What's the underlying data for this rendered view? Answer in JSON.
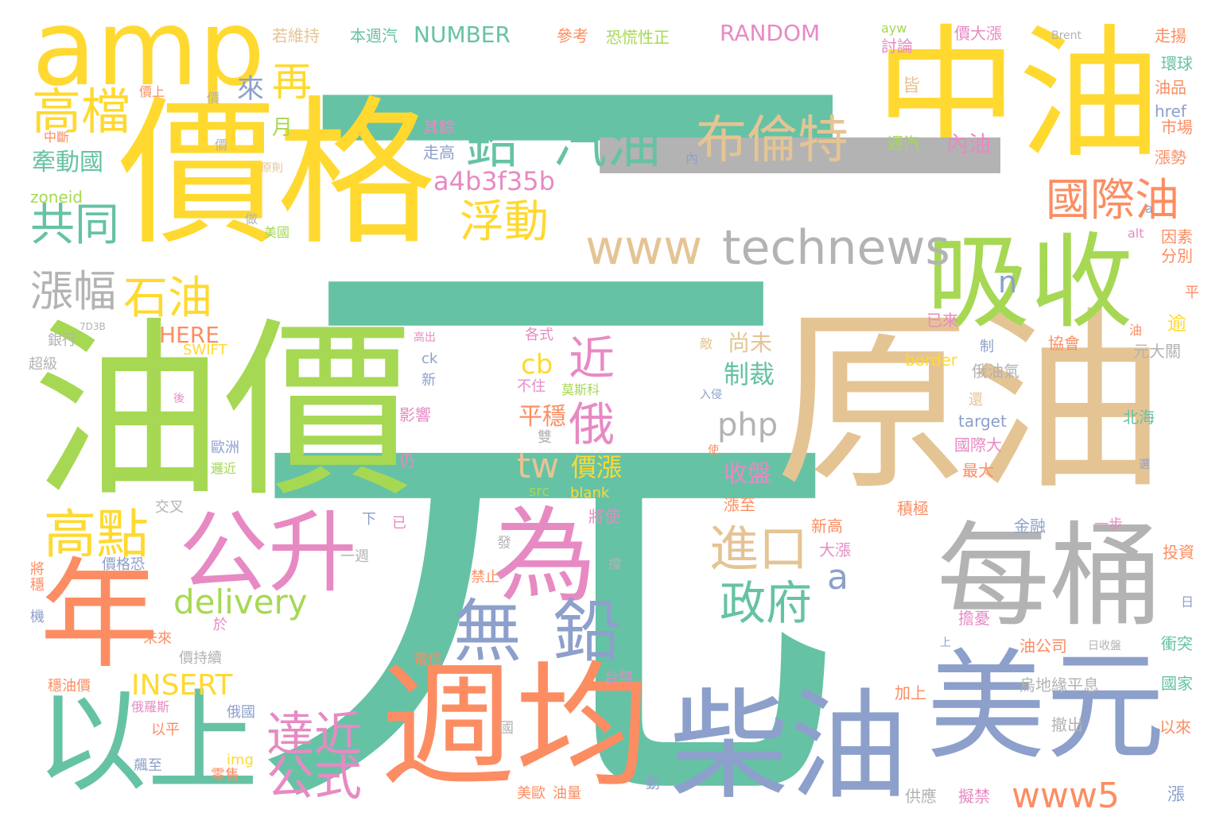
{
  "palette": {
    "teal": "#66c2a5",
    "orange": "#fc8d62",
    "blue": "#8da0cb",
    "pink": "#e78ac3",
    "green": "#a6d854",
    "yellow": "#ffd92f",
    "tan": "#e5c494",
    "gray": "#b3b3b3",
    "background": "#ffffff"
  },
  "words": [
    {
      "text": "元",
      "color": "#66c2a5"
    },
    {
      "text": "一",
      "color": "#66c2a5"
    },
    {
      "text": "價格",
      "color": "#ffd92f"
    },
    {
      "text": "原油",
      "color": "#e5c494"
    },
    {
      "text": "油價",
      "color": "#a6d854"
    },
    {
      "text": "中油",
      "color": "#ffd92f"
    },
    {
      "text": "週均",
      "color": "#fc8d62"
    },
    {
      "text": "美元",
      "color": "#8da0cb"
    },
    {
      "text": "柴油",
      "color": "#8da0cb"
    },
    {
      "text": "每桶",
      "color": "#b3b3b3"
    },
    {
      "text": "吸收",
      "color": "#a6d854"
    },
    {
      "text": "年",
      "color": "#fc8d62"
    },
    {
      "text": "以上",
      "color": "#66c2a5"
    },
    {
      "text": "amp",
      "color": "#ffd92f"
    },
    {
      "text": "為",
      "color": "#e78ac3"
    },
    {
      "text": "公升",
      "color": "#e78ac3"
    },
    {
      "text": "一",
      "color": "#b3b3b3"
    },
    {
      "text": "technews",
      "color": "#b3b3b3"
    },
    {
      "text": "鉛",
      "color": "#66c2a5"
    },
    {
      "text": "汽油",
      "color": "#66c2a5"
    },
    {
      "text": "布倫特",
      "color": "#e5c494"
    },
    {
      "text": "國際油",
      "color": "#fc8d62"
    },
    {
      "text": "無",
      "color": "#8da0cb"
    },
    {
      "text": "鉛",
      "color": "#8da0cb"
    },
    {
      "text": "高檔",
      "color": "#ffd92f"
    },
    {
      "text": "高點",
      "color": "#ffd92f"
    },
    {
      "text": "進口",
      "color": "#e5c494"
    },
    {
      "text": "政府",
      "color": "#66c2a5"
    },
    {
      "text": "達近",
      "color": "#e78ac3"
    },
    {
      "text": "公式",
      "color": "#e78ac3"
    },
    {
      "text": "www",
      "color": "#e5c494"
    },
    {
      "text": "浮動",
      "color": "#ffd92f"
    },
    {
      "text": "共同",
      "color": "#66c2a5"
    },
    {
      "text": "石油",
      "color": "#ffd92f"
    },
    {
      "text": "漲幅",
      "color": "#b3b3b3"
    },
    {
      "text": "再",
      "color": "#ffd92f"
    },
    {
      "text": "近",
      "color": "#e78ac3"
    },
    {
      "text": "俄",
      "color": "#e78ac3"
    },
    {
      "text": "tw",
      "color": "#e5c494"
    },
    {
      "text": "delivery",
      "color": "#a6d854"
    },
    {
      "text": "www5",
      "color": "#fc8d62"
    },
    {
      "text": "a4b3f35b",
      "color": "#e78ac3"
    },
    {
      "text": "php",
      "color": "#b3b3b3"
    },
    {
      "text": "a",
      "color": "#8da0cb"
    },
    {
      "text": "INSERT",
      "color": "#ffd92f"
    },
    {
      "text": "NUMBER",
      "color": "#66c2a5"
    },
    {
      "text": "RANDOM",
      "color": "#e78ac3"
    },
    {
      "text": "HERE",
      "color": "#fc8d62"
    },
    {
      "text": "SWIFT",
      "color": "#ffd92f"
    },
    {
      "text": "牽動國",
      "color": "#66c2a5"
    },
    {
      "text": "來",
      "color": "#8da0cb"
    },
    {
      "text": "月",
      "color": "#a6d854"
    },
    {
      "text": "cb",
      "color": "#ffd92f"
    },
    {
      "text": "制裁",
      "color": "#66c2a5"
    },
    {
      "text": "尚未",
      "color": "#e5c494"
    },
    {
      "text": "收盤",
      "color": "#e78ac3"
    },
    {
      "text": "價漲",
      "color": "#ffd92f"
    },
    {
      "text": "平穩",
      "color": "#fc8d62"
    },
    {
      "text": "內油",
      "color": "#e78ac3"
    },
    {
      "text": "n",
      "color": "#8da0cb"
    },
    {
      "text": "逾",
      "color": "#ffd92f"
    },
    {
      "text": "若維持",
      "color": "#e5c494"
    },
    {
      "text": "本週汽",
      "color": "#66c2a5"
    },
    {
      "text": "參考",
      "color": "#fc8d62"
    },
    {
      "text": "恐慌性正",
      "color": "#a6d854"
    },
    {
      "text": "價大漲",
      "color": "#e78ac3"
    },
    {
      "text": "走揚",
      "color": "#fc8d62"
    },
    {
      "text": "環球",
      "color": "#66c2a5"
    },
    {
      "text": "油品",
      "color": "#fc8d62"
    },
    {
      "text": "href",
      "color": "#8da0cb"
    },
    {
      "text": "市場",
      "color": "#fc8d62"
    },
    {
      "text": "漲勢",
      "color": "#fc8d62"
    },
    {
      "text": "因素",
      "color": "#fc8d62"
    },
    {
      "text": "分別",
      "color": "#fc8d62"
    },
    {
      "text": "zoneid",
      "color": "#a6d854"
    },
    {
      "text": "其餘",
      "color": "#e78ac3"
    },
    {
      "text": "走高",
      "color": "#8da0cb"
    },
    {
      "text": "週汽",
      "color": "#a6d854"
    },
    {
      "text": "皆",
      "color": "#e5c494"
    },
    {
      "text": "討論",
      "color": "#e78ac3"
    },
    {
      "text": "ayw",
      "color": "#a6d854"
    },
    {
      "text": "Brent",
      "color": "#b3b3b3"
    },
    {
      "text": "已來",
      "color": "#e78ac3"
    },
    {
      "text": "border",
      "color": "#ffd92f"
    },
    {
      "text": "俄油氣",
      "color": "#b3b3b3"
    },
    {
      "text": "target",
      "color": "#8da0cb"
    },
    {
      "text": "國際大",
      "color": "#e78ac3"
    },
    {
      "text": "最大",
      "color": "#fc8d62"
    },
    {
      "text": "積極",
      "color": "#fc8d62"
    },
    {
      "text": "協會",
      "color": "#fc8d62"
    },
    {
      "text": "元大關",
      "color": "#b3b3b3"
    },
    {
      "text": "北海",
      "color": "#66c2a5"
    },
    {
      "text": "金融",
      "color": "#8da0cb"
    },
    {
      "text": "一步",
      "color": "#e78ac3"
    },
    {
      "text": "投資",
      "color": "#fc8d62"
    },
    {
      "text": "衝突",
      "color": "#66c2a5"
    },
    {
      "text": "國家",
      "color": "#66c2a5"
    },
    {
      "text": "以來",
      "color": "#fc8d62"
    },
    {
      "text": "撤出",
      "color": "#b3b3b3"
    },
    {
      "text": "烏地緣平息",
      "color": "#b3b3b3"
    },
    {
      "text": "加上",
      "color": "#fc8d62"
    },
    {
      "text": "擔憂",
      "color": "#e78ac3"
    },
    {
      "text": "油公司",
      "color": "#fc8d62"
    },
    {
      "text": "供應",
      "color": "#b3b3b3"
    },
    {
      "text": "擬禁",
      "color": "#e78ac3"
    },
    {
      "text": "新高",
      "color": "#fc8d62"
    },
    {
      "text": "大漲",
      "color": "#e78ac3"
    },
    {
      "text": "漲至",
      "color": "#fc8d62"
    },
    {
      "text": "影響",
      "color": "#e78ac3"
    },
    {
      "text": "雙",
      "color": "#b3b3b3"
    },
    {
      "text": "將使",
      "color": "#e78ac3"
    },
    {
      "text": "src",
      "color": "#a6d854"
    },
    {
      "text": "blank",
      "color": "#ffd92f"
    },
    {
      "text": "各式",
      "color": "#e78ac3"
    },
    {
      "text": "莫斯科",
      "color": "#a6d854"
    },
    {
      "text": "不住",
      "color": "#e78ac3"
    },
    {
      "text": "仍",
      "color": "#e78ac3"
    },
    {
      "text": "ck",
      "color": "#8da0cb"
    },
    {
      "text": "新",
      "color": "#8da0cb"
    },
    {
      "text": "高出",
      "color": "#e78ac3"
    },
    {
      "text": "銀行",
      "color": "#b3b3b3"
    },
    {
      "text": "超級",
      "color": "#b3b3b3"
    },
    {
      "text": "歐洲",
      "color": "#8da0cb"
    },
    {
      "text": "邏近",
      "color": "#a6d854"
    },
    {
      "text": "交叉",
      "color": "#b3b3b3"
    },
    {
      "text": "價格恐",
      "color": "#8da0cb"
    },
    {
      "text": "價持續",
      "color": "#b3b3b3"
    },
    {
      "text": "未來",
      "color": "#fc8d62"
    },
    {
      "text": "於",
      "color": "#e78ac3"
    },
    {
      "text": "穩油價",
      "color": "#fc8d62"
    },
    {
      "text": "俄羅斯",
      "color": "#e78ac3"
    },
    {
      "text": "以平",
      "color": "#fc8d62"
    },
    {
      "text": "俄國",
      "color": "#8da0cb"
    },
    {
      "text": "飆至",
      "color": "#8da0cb"
    },
    {
      "text": "零售",
      "color": "#fc8d62"
    },
    {
      "text": "img",
      "color": "#ffd92f"
    },
    {
      "text": "美歐",
      "color": "#fc8d62"
    },
    {
      "text": "油量",
      "color": "#fc8d62"
    },
    {
      "text": "台幣",
      "color": "#e78ac3"
    },
    {
      "text": "電信",
      "color": "#fc8d62"
    },
    {
      "text": "禁止",
      "color": "#fc8d62"
    },
    {
      "text": "一週",
      "color": "#b3b3b3"
    },
    {
      "text": "下",
      "color": "#8da0cb"
    },
    {
      "text": "已",
      "color": "#e78ac3"
    },
    {
      "text": "中斷",
      "color": "#fc8d62"
    },
    {
      "text": "價上",
      "color": "#fc8d62"
    },
    {
      "text": "價",
      "color": "#b3b3b3"
    },
    {
      "text": "美國",
      "color": "#a6d854"
    },
    {
      "text": "做",
      "color": "#b3b3b3"
    },
    {
      "text": "原則",
      "color": "#e5c494"
    },
    {
      "text": "機",
      "color": "#8da0cb"
    },
    {
      "text": "將",
      "color": "#fc8d62"
    },
    {
      "text": "穩",
      "color": "#fc8d62"
    },
    {
      "text": "發",
      "color": "#b3b3b3"
    },
    {
      "text": "擋",
      "color": "#b3b3b3"
    },
    {
      "text": "入侵",
      "color": "#8da0cb"
    },
    {
      "text": "敵",
      "color": "#e5c494"
    },
    {
      "text": "制",
      "color": "#8da0cb"
    },
    {
      "text": "油",
      "color": "#fc8d62"
    },
    {
      "text": "平",
      "color": "#fc8d62"
    },
    {
      "text": "日",
      "color": "#8da0cb"
    },
    {
      "text": "日收盤",
      "color": "#b3b3b3"
    },
    {
      "text": "漲",
      "color": "#8da0cb"
    },
    {
      "text": "動",
      "color": "#8da0cb"
    },
    {
      "text": "國",
      "color": "#b3b3b3"
    },
    {
      "text": "內",
      "color": "#8da0cb"
    },
    {
      "text": "a",
      "color": "#8da0cb"
    },
    {
      "text": "alt",
      "color": "#e78ac3"
    },
    {
      "text": "價",
      "color": "#b3b3b3"
    },
    {
      "text": "使",
      "color": "#fc8d62"
    },
    {
      "text": "選",
      "color": "#8da0cb"
    },
    {
      "text": "上",
      "color": "#8da0cb"
    },
    {
      "text": "還",
      "color": "#e5c494"
    },
    {
      "text": "後",
      "color": "#e78ac3"
    },
    {
      "text": "7D3B",
      "color": "#b3b3b3"
    }
  ]
}
